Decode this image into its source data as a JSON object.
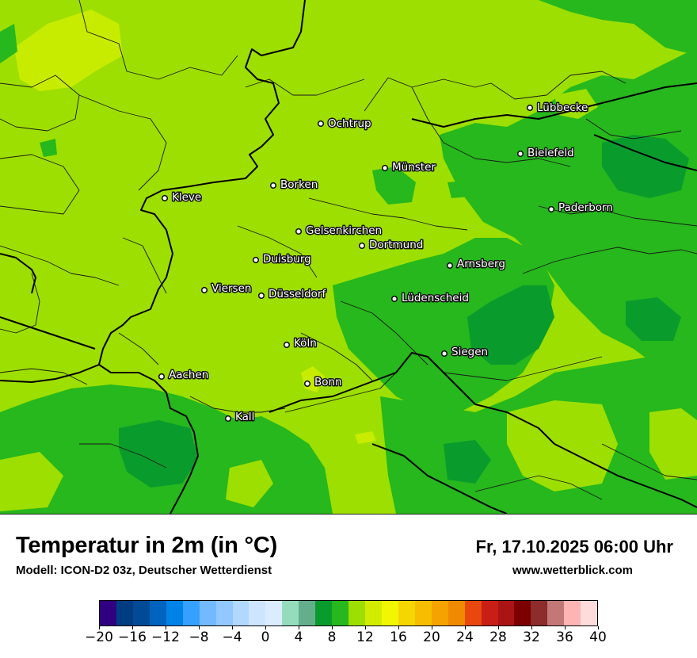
{
  "title": "Temperatur in 2m (in °C)",
  "subtitle": "Modell: ICON-D2 03z, Deutscher Wetterdienst",
  "datetime": "Fr, 17.10.2025 06:00 Uhr",
  "website": "www.wetterblick.com",
  "map": {
    "base_color": "#9ddf00",
    "cities": [
      {
        "name": "Lübbecke"
      },
      {
        "name": "Ochtrup"
      },
      {
        "name": "Bielefeld"
      },
      {
        "name": "Münster"
      },
      {
        "name": "Borken"
      },
      {
        "name": "Kleve"
      },
      {
        "name": "Paderborn"
      },
      {
        "name": "Gelsenkirchen"
      },
      {
        "name": "Dortmund"
      },
      {
        "name": "Duisburg"
      },
      {
        "name": "Arnsberg"
      },
      {
        "name": "Viersen"
      },
      {
        "name": "Düsseldorf"
      },
      {
        "name": "Lüdenscheid"
      },
      {
        "name": "Köln"
      },
      {
        "name": "Siegen"
      },
      {
        "name": "Aachen"
      },
      {
        "name": "Bonn"
      },
      {
        "name": "Kall"
      }
    ]
  },
  "legend": {
    "colors": [
      "#310080",
      "#003c82",
      "#004a96",
      "#0063be",
      "#0082e6",
      "#35a0ff",
      "#73b9ff",
      "#91c8ff",
      "#b1d8ff",
      "#cde5ff",
      "#dcecff",
      "#94dcbc",
      "#63af8c",
      "#0a9b2d",
      "#26b81c",
      "#9ddf00",
      "#d2ec00",
      "#f0f700",
      "#f5d600",
      "#f5be00",
      "#f5a300",
      "#f08a00",
      "#e8480e",
      "#c81e14",
      "#aa1414",
      "#7c0000",
      "#8c2c2c",
      "#c37878",
      "#ffb4b4",
      "#ffdcdc"
    ],
    "ticks": [
      "−20",
      "−16",
      "−12",
      "−8",
      "−4",
      "0",
      "4",
      "8",
      "12",
      "16",
      "20",
      "24",
      "28",
      "32",
      "36",
      "40"
    ],
    "min": -20,
    "max": 40
  }
}
